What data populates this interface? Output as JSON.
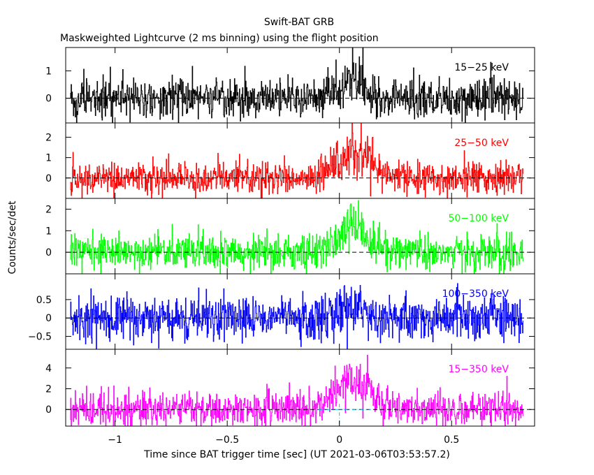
{
  "title": "Swift-BAT GRB",
  "subtitle": "Maskweighted Lightcurve (2 ms binning) using the flight position",
  "xlabel": "Time since BAT trigger time [sec] (UT 2021-03-06T03:53:57.2)",
  "ylabel": "Counts/sec/det",
  "chart_data": {
    "type": "line",
    "style": "step",
    "bin_width_sec": 0.002,
    "title": "Swift-BAT GRB",
    "subtitle": "Maskweighted Lightcurve (2 ms binning) using the flight position",
    "xlabel": "Time since BAT trigger time [sec] (UT 2021-03-06T03:53:57.2)",
    "ylabel": "Counts/sec/det",
    "xlim": [
      -1.22,
      0.87
    ],
    "x_range": [
      -1.2,
      0.82
    ],
    "xticks": [
      {
        "value": -1,
        "label": "−1"
      },
      {
        "value": -0.5,
        "label": "−0.5"
      },
      {
        "value": 0,
        "label": "0"
      },
      {
        "value": 0.5,
        "label": "0.5"
      }
    ],
    "zero_line": "dashed",
    "panels": [
      {
        "label": "15−25 keV",
        "color": "#000000",
        "ylim": [
          -0.9,
          1.85
        ],
        "yticks": [
          {
            "value": 1,
            "label": "1"
          },
          {
            "value": 0,
            "label": "0"
          }
        ],
        "noise": 0.38,
        "burst": {
          "amplitude": 0.55,
          "start": -0.13,
          "peak_time": 0.03,
          "width": 0.11
        }
      },
      {
        "label": "25−50 keV",
        "color": "#ff0000",
        "ylim": [
          -1.0,
          2.7
        ],
        "yticks": [
          {
            "value": 2,
            "label": "2"
          },
          {
            "value": 1,
            "label": "1"
          },
          {
            "value": 0,
            "label": "0"
          }
        ],
        "noise": 0.42,
        "burst": {
          "amplitude": 1.3,
          "start": -0.17,
          "peak_time": 0.06,
          "width": 0.12
        }
      },
      {
        "label": "50−100 keV",
        "color": "#00ff00",
        "ylim": [
          -1.0,
          2.5
        ],
        "yticks": [
          {
            "value": 2,
            "label": "2"
          },
          {
            "value": 1,
            "label": "1"
          },
          {
            "value": 0,
            "label": "0"
          }
        ],
        "noise": 0.4,
        "burst": {
          "amplitude": 1.3,
          "start": -0.15,
          "peak_time": 0.04,
          "width": 0.1
        }
      },
      {
        "label": "100−350 keV",
        "color": "#0000ff",
        "ylim": [
          -0.85,
          1.2
        ],
        "yticks": [
          {
            "value": 0.5,
            "label": "0.5"
          },
          {
            "value": 0,
            "label": "0"
          },
          {
            "value": -0.5,
            "label": "−0.5"
          }
        ],
        "noise": 0.3,
        "burst": {
          "amplitude": 0.3,
          "start": -0.1,
          "peak_time": 0.05,
          "width": 0.1
        }
      },
      {
        "label": "15−350 keV",
        "color": "#ff00ff",
        "ylim": [
          -1.6,
          5.8
        ],
        "yticks": [
          {
            "value": 4,
            "label": "4"
          },
          {
            "value": 2,
            "label": "2"
          },
          {
            "value": 0,
            "label": "0"
          }
        ],
        "noise": 0.85,
        "burst": {
          "amplitude": 3.1,
          "start": -0.2,
          "peak_time": 0.05,
          "width": 0.12
        }
      }
    ],
    "markers": [
      {
        "x": 0.0,
        "color": "#00bfff",
        "style": "dash-dot",
        "panel": "15−350 keV"
      }
    ]
  }
}
